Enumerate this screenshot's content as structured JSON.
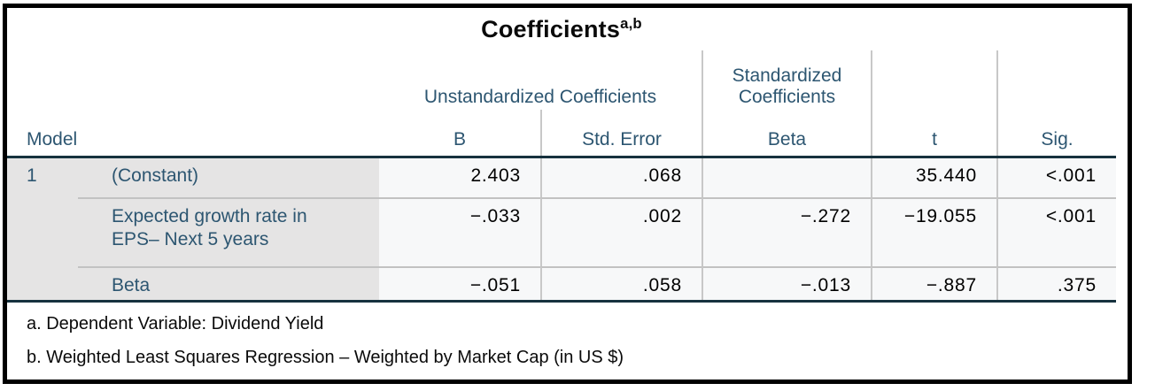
{
  "title": {
    "text": "Coefficients",
    "sup": "a,b"
  },
  "header": {
    "stub": "Model",
    "group_unstandardized": "Unstandardized Coefficients",
    "group_standardized": "Standardized Coefficients",
    "col_b": "B",
    "col_std_error": "Std. Error",
    "col_beta": "Beta",
    "col_t": "t",
    "col_sig": "Sig."
  },
  "body": {
    "model_number": "1",
    "rows": [
      {
        "label": "(Constant)",
        "b": "2.403",
        "std_error": ".068",
        "beta": "",
        "t": "35.440",
        "sig": "<.001"
      },
      {
        "label": "Expected growth rate in EPS– Next 5 years",
        "b": "−.033",
        "std_error": ".002",
        "beta": "−.272",
        "t": "−19.055",
        "sig": "<.001"
      },
      {
        "label": "Beta",
        "b": "−.051",
        "std_error": ".058",
        "beta": "−.013",
        "t": "−.887",
        "sig": ".375"
      }
    ]
  },
  "footnotes": [
    "a. Dependent Variable: Dividend Yield",
    "b. Weighted Least Squares Regression – Weighted by Market Cap (in US $)"
  ],
  "colors": {
    "header_text": "#2d5671",
    "heavy_line": "#16323e",
    "grid_line": "#c8c8c8",
    "stub_background": "#e5e4e4",
    "body_background": "#f7f8f9",
    "frame_border": "#000000"
  }
}
